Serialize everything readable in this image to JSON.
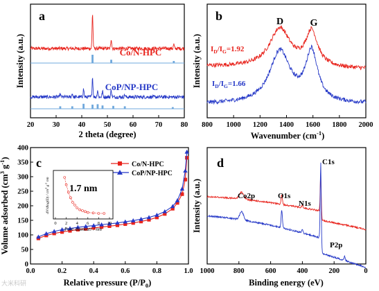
{
  "colors": {
    "red": "#e8231c",
    "blue": "#2538c7",
    "sky": "#6fa8dc",
    "black": "#000000"
  },
  "watermark": "大米科研",
  "chart_data": [
    {
      "panel": "a",
      "type": "line",
      "xlabel": "2 theta (degree)",
      "ylabel": "Intensity (a.u.)",
      "xlim": [
        20,
        80
      ],
      "xticks": [
        "20",
        "30",
        "40",
        "50",
        "60",
        "70",
        "80"
      ],
      "series": [
        {
          "name": "Co/N-HPC",
          "color": "red",
          "peaks": [
            [
              44.2,
              1.0
            ],
            [
              51.5,
              0.28
            ],
            [
              75.9,
              0.12
            ]
          ],
          "reference_sticks": [
            [
              44.2,
              1.0
            ],
            [
              51.5,
              0.4
            ],
            [
              75.9,
              0.25
            ]
          ]
        },
        {
          "name": "CoP/NP-HPC",
          "color": "blue",
          "peaks": [
            [
              31.6,
              0.12
            ],
            [
              36.3,
              0.15
            ],
            [
              40.7,
              0.35
            ],
            [
              44.2,
              0.85
            ],
            [
              46.2,
              0.3
            ],
            [
              48.1,
              0.25
            ],
            [
              51.5,
              0.3
            ],
            [
              56.8,
              0.1
            ]
          ],
          "reference_sticks": [
            [
              31.6,
              0.3
            ],
            [
              36.3,
              0.3
            ],
            [
              40.7,
              0.6
            ],
            [
              44.2,
              0.5
            ],
            [
              46.2,
              0.55
            ],
            [
              48.1,
              0.4
            ],
            [
              52.3,
              0.35
            ],
            [
              56.8,
              0.3
            ],
            [
              75.5,
              0.2
            ]
          ]
        }
      ]
    },
    {
      "panel": "b",
      "type": "line",
      "xlabel": "Wavenumber (cm⁻¹)",
      "ylabel": "Intensity (a.u.)",
      "xlim": [
        800,
        2000
      ],
      "xticks": [
        "800",
        "1000",
        "1200",
        "1400",
        "1600",
        "1800",
        "2000"
      ],
      "band_labels": [
        "D",
        "G"
      ],
      "series": [
        {
          "name": "",
          "color": "red",
          "ratio_label": "ID/IG=1.92",
          "D": 1350,
          "G": 1590
        },
        {
          "name": "",
          "color": "blue",
          "ratio_label": "ID/IG=1.66",
          "D": 1350,
          "G": 1590
        }
      ]
    },
    {
      "panel": "c",
      "type": "line",
      "xlabel": "Relative pressure (P/P0)",
      "ylabel": "Volume adsorbed (cm3 g-1)",
      "xlim": [
        0,
        1.0
      ],
      "ylim": [
        0,
        400
      ],
      "xticks": [
        "0.0",
        "0.2",
        "0.4",
        "0.6",
        "0.8",
        "1.0"
      ],
      "yticks": [
        "0",
        "50",
        "100",
        "150",
        "200",
        "250",
        "300",
        "350",
        "400"
      ],
      "series": [
        {
          "name": "Co/N-HPC",
          "color": "red",
          "marker": "square",
          "x": [
            0.05,
            0.1,
            0.15,
            0.2,
            0.25,
            0.3,
            0.35,
            0.4,
            0.45,
            0.5,
            0.55,
            0.6,
            0.65,
            0.7,
            0.75,
            0.8,
            0.85,
            0.9,
            0.93,
            0.96,
            0.98,
            0.99
          ],
          "y": [
            88,
            98,
            105,
            110,
            114,
            118,
            121,
            124,
            127,
            130,
            133,
            137,
            141,
            146,
            152,
            160,
            172,
            190,
            210,
            240,
            290,
            365
          ]
        },
        {
          "name": "CoP/NP-HPC",
          "color": "blue",
          "marker": "triangle",
          "x": [
            0.05,
            0.1,
            0.15,
            0.2,
            0.25,
            0.3,
            0.35,
            0.4,
            0.45,
            0.5,
            0.55,
            0.6,
            0.65,
            0.7,
            0.75,
            0.8,
            0.85,
            0.9,
            0.93,
            0.96,
            0.98,
            0.99
          ],
          "y": [
            93,
            104,
            112,
            118,
            122,
            126,
            129,
            132,
            135,
            138,
            141,
            145,
            149,
            154,
            160,
            168,
            180,
            198,
            218,
            258,
            320,
            385
          ]
        }
      ],
      "inset": {
        "annotation": "1.7 nm",
        "xlabel": "Pore diameter / nm",
        "ylabel": "dV/dlog(D) / cm3 g-1 nm",
        "xlim": [
          0,
          10
        ],
        "xticks": [
          "0",
          "2",
          "4",
          "6",
          "8",
          "10"
        ],
        "x": [
          1.7,
          2.0,
          2.4,
          2.8,
          3.2,
          3.6,
          4.0,
          4.5,
          5.0,
          5.5,
          6.0,
          7.0,
          8.0,
          9.0
        ],
        "y": [
          0.42,
          0.34,
          0.26,
          0.2,
          0.15,
          0.12,
          0.09,
          0.07,
          0.06,
          0.05,
          0.04,
          0.035,
          0.03,
          0.03
        ]
      }
    },
    {
      "panel": "d",
      "type": "line",
      "xlabel": "Binding energy (eV)",
      "ylabel": "Intensity (a.u.)",
      "xlim": [
        1000,
        0
      ],
      "xticks": [
        "1000",
        "800",
        "600",
        "400",
        "200",
        "0"
      ],
      "peak_labels": [
        "C1s",
        "Co2p",
        "O1s",
        "N1s",
        "P2p"
      ],
      "series": [
        {
          "name": "",
          "color": "red"
        },
        {
          "name": "",
          "color": "blue"
        }
      ]
    }
  ]
}
